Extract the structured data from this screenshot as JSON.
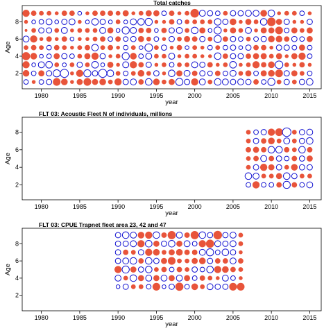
{
  "chart_data": [
    {
      "type": "bubble",
      "title": "Total catches",
      "xlabel": "year",
      "ylabel": "Age",
      "xlim": [
        1977.5,
        2016.5
      ],
      "ylim": [
        0.2,
        9.9
      ],
      "xticks": [
        1980,
        1985,
        1990,
        1995,
        2000,
        2005,
        2010,
        2015
      ],
      "yticks": [
        2,
        4,
        6,
        8
      ],
      "years": [
        1977,
        2015
      ],
      "ages": [
        1,
        9
      ],
      "colors": {
        "positive": "#e8543a",
        "negative": "#1010d0"
      },
      "residuals": [
        [
          -0.6,
          0.9,
          0.5,
          0.2,
          -0.3,
          -0.2,
          -0.4,
          -0.2,
          -0.3
        ],
        [
          -0.3,
          0.6,
          0.7,
          0.9,
          0.3,
          -0.5,
          0.1,
          0.2,
          0.7
        ],
        [
          0.2,
          -0.3,
          -0.2,
          0.6,
          0.4,
          0.7,
          0.3,
          -0.2,
          0.4
        ],
        [
          -0.3,
          0.5,
          -0.5,
          -0.2,
          0.3,
          0.2,
          -0.4,
          -0.3,
          0.3
        ],
        [
          -0.4,
          -0.4,
          -0.6,
          -0.3,
          -0.3,
          0.4,
          -0.4,
          -0.5,
          0.3
        ],
        [
          0.8,
          -0.7,
          0.3,
          0.5,
          0.4,
          0.2,
          0.3,
          -0.2,
          0.2
        ],
        [
          0.6,
          -0.9,
          -0.2,
          -0.4,
          0.3,
          0.4,
          -0.5,
          -0.4,
          0.4
        ],
        [
          0.2,
          0.2,
          0.3,
          -0.3,
          0.2,
          -0.2,
          0.2,
          -0.5,
          0.4
        ],
        [
          0.5,
          0.7,
          -0.4,
          0.3,
          0.3,
          0.2,
          0.3,
          0.2,
          -0.2
        ],
        [
          0.8,
          -0.7,
          0.3,
          0.5,
          0.4,
          0.2,
          0.3,
          -0.2,
          0.2
        ],
        [
          0.5,
          -0.4,
          -0.6,
          0.7,
          -0.6,
          0.3,
          0.3,
          -0.6,
          0.4
        ],
        [
          0.6,
          -0.9,
          -0.2,
          -0.4,
          0.3,
          0.4,
          -0.5,
          -0.4,
          0.4
        ],
        [
          0.3,
          -0.6,
          0.5,
          0.2,
          0.4,
          -0.3,
          0.5,
          -0.2,
          0.4
        ],
        [
          0.7,
          0.3,
          0.2,
          0.3,
          0.2,
          0.4,
          -0.2,
          0.3,
          0.3
        ],
        [
          -0.4,
          -0.3,
          -0.5,
          -0.7,
          -0.3,
          -0.3,
          -0.7,
          -0.2,
          0.5
        ],
        [
          -0.5,
          0.3,
          0.7,
          0.6,
          0.3,
          -0.4,
          -0.5,
          -0.5,
          0.2
        ],
        [
          0.4,
          0.6,
          0.4,
          -0.3,
          -0.2,
          0.5,
          0.4,
          -0.6,
          0.3
        ],
        [
          -0.6,
          0.3,
          -0.4,
          -0.5,
          -0.8,
          0.3,
          0.4,
          -0.7,
          0.5
        ],
        [
          0.6,
          -0.4,
          0.2,
          0.3,
          0.3,
          -0.3,
          -0.2,
          0.2,
          0.5
        ],
        [
          0.3,
          0.2,
          0.3,
          0.3,
          -0.4,
          0.2,
          0.4,
          0.2,
          -0.3
        ],
        [
          0.5,
          -0.6,
          -0.3,
          -0.5,
          0.2,
          -0.4,
          -0.4,
          0.4,
          0.4
        ],
        [
          -0.7,
          0.5,
          0.3,
          0.2,
          0.4,
          0.3,
          -0.5,
          -0.3,
          0.2
        ],
        [
          -0.4,
          -0.5,
          0.3,
          0.3,
          -0.2,
          0.5,
          0.3,
          0.3,
          0.3
        ],
        [
          0.7,
          0.4,
          -0.5,
          0.3,
          0.3,
          0.4,
          -0.6,
          0.3,
          1.0
        ],
        [
          -0.5,
          -0.4,
          -0.4,
          0.2,
          0.2,
          -0.4,
          0.5,
          0.3,
          -0.5
        ],
        [
          0.3,
          -0.3,
          0.4,
          0.2,
          -0.3,
          0.3,
          -0.2,
          0.3,
          -0.4
        ],
        [
          -0.6,
          0.4,
          0.2,
          -0.6,
          0.3,
          -0.7,
          -0.7,
          -0.6,
          -0.3
        ],
        [
          -0.5,
          -0.3,
          0.3,
          0.4,
          -0.3,
          0.4,
          0.2,
          -0.4,
          0.3
        ],
        [
          -0.4,
          -0.5,
          -0.6,
          -0.4,
          -0.4,
          -0.4,
          0.5,
          0.6,
          -0.4
        ],
        [
          -0.5,
          0.3,
          0.2,
          -0.4,
          -0.2,
          -0.3,
          0.3,
          0.2,
          -0.4
        ],
        [
          -0.4,
          0.5,
          0.3,
          0.4,
          -0.4,
          0.3,
          -0.5,
          0.5,
          -0.5
        ],
        [
          0.4,
          -0.3,
          0.7,
          0.5,
          0.4,
          -0.3,
          0.2,
          0.3,
          -0.5
        ],
        [
          -0.3,
          0.5,
          0.4,
          0.5,
          0.4,
          -0.4,
          0.5,
          -0.6,
          0.6
        ],
        [
          -0.7,
          0.6,
          0.6,
          0.3,
          0.2,
          0.6,
          0.5,
          1.0,
          -0.6
        ],
        [
          0.3,
          0.8,
          -0.8,
          0.5,
          -0.4,
          0.6,
          0.8,
          0.5,
          0.2
        ],
        [
          -0.4,
          -0.4,
          0.3,
          0.2,
          -0.4,
          0.4,
          -0.3,
          -0.4,
          0.3
        ],
        [
          0.3,
          0.5,
          0.2,
          0.5,
          -0.3,
          -0.4,
          0.5,
          0.2,
          0.3
        ],
        [
          -0.4,
          0.3,
          0.4,
          0.7,
          0.5,
          -0.3,
          0.3,
          0.2,
          -0.3
        ],
        [
          -0.6,
          -0.3,
          0.2,
          -0.3,
          -0.3,
          0.5,
          0.5,
          -0.4,
          0.2
        ]
      ]
    },
    {
      "type": "bubble",
      "title": "FLT 03: Acoustic Fleet   N of individuals, millions",
      "xlabel": "year",
      "ylabel": "Age",
      "xlim": [
        1977.5,
        2016.5
      ],
      "ylim": [
        0.3,
        9.7
      ],
      "xticks": [
        1980,
        1985,
        1990,
        1995,
        2000,
        2005,
        2010,
        2015
      ],
      "yticks": [
        2,
        4,
        6,
        8
      ],
      "years": [
        2007,
        2015
      ],
      "ages": [
        2,
        8
      ],
      "colors": {
        "positive": "#e8543a",
        "negative": "#1010d0"
      },
      "residuals": [
        [
          -0.3,
          -0.6,
          0.3,
          0.3,
          0.4,
          0.3,
          0.3
        ],
        [
          0.7,
          -0.5,
          -0.4,
          0.4,
          0.5,
          -0.4,
          -0.3
        ],
        [
          -0.3,
          0.3,
          0.7,
          -0.5,
          0.4,
          0.4,
          -0.4
        ],
        [
          -0.3,
          0.3,
          0.5,
          0.4,
          -0.6,
          0.6,
          0.7
        ],
        [
          0.4,
          0.5,
          -0.4,
          -0.4,
          -0.6,
          0.3,
          0.8
        ],
        [
          -0.7,
          -0.6,
          0.3,
          -0.3,
          0.4,
          -0.5,
          -1.0
        ],
        [
          0.4,
          -0.4,
          0.6,
          0.4,
          0.3,
          0.3,
          0.3
        ],
        [
          -0.3,
          0.3,
          -0.4,
          -0.4,
          -0.6,
          -0.4,
          -0.4
        ],
        [
          -0.5,
          0.3,
          -0.4,
          0.5,
          0.4,
          -0.6,
          -0.5
        ]
      ]
    },
    {
      "type": "bubble",
      "title": "FLT 03: CPUE Trapnet fleet area 23, 42 and 47",
      "xlabel": "year",
      "ylabel": "Age",
      "xlim": [
        1977.5,
        2016.5
      ],
      "ylim": [
        0.2,
        9.8
      ],
      "xticks": [
        1980,
        1985,
        1990,
        1995,
        2000,
        2005,
        2010,
        2015
      ],
      "yticks": [
        2,
        4,
        6,
        8
      ],
      "years": [
        1990,
        2006
      ],
      "ages": [
        3,
        9
      ],
      "colors": {
        "positive": "#e8543a",
        "negative": "#1010d0"
      },
      "residuals": [
        [
          -0.2,
          -0.5,
          0.7,
          -0.4,
          -0.4,
          -0.4,
          -0.4
        ],
        [
          -0.4,
          0.3,
          -0.7,
          -0.5,
          0.4,
          -0.4,
          -0.6
        ],
        [
          0.3,
          -0.6,
          0.5,
          -0.6,
          0.3,
          -0.5,
          -0.5
        ],
        [
          0.3,
          0.5,
          -0.4,
          0.4,
          -0.4,
          0.7,
          0.6
        ],
        [
          -0.3,
          -0.5,
          -0.6,
          -0.6,
          0.7,
          -0.6,
          0.7
        ],
        [
          0.8,
          0.5,
          0.3,
          -0.4,
          0.6,
          0.5,
          -0.6
        ],
        [
          -0.2,
          -0.5,
          0.4,
          0.5,
          0.3,
          -0.4,
          0.4
        ],
        [
          -0.4,
          0.5,
          -0.3,
          0.8,
          0.5,
          -0.6,
          0.9
        ],
        [
          0.9,
          -0.5,
          0.4,
          0.3,
          0.6,
          0.5,
          -0.5
        ],
        [
          -0.3,
          0.5,
          0.3,
          0.3,
          0.4,
          -0.5,
          0.4
        ],
        [
          0.6,
          -0.3,
          -0.4,
          0.5,
          0.4,
          -0.3,
          0.9
        ],
        [
          0.3,
          0.4,
          -0.3,
          0.6,
          -0.5,
          0.7,
          -0.6
        ],
        [
          -0.5,
          0.3,
          -0.6,
          -0.4,
          -0.7,
          0.9,
          -0.4
        ],
        [
          -0.4,
          0.2,
          0.7,
          0.4,
          -0.3,
          -0.5,
          1.0
        ],
        [
          -0.4,
          -0.5,
          0.6,
          0.4,
          -0.6,
          -0.4,
          -0.4
        ],
        [
          0.8,
          -0.3,
          0.4,
          -0.5,
          -0.4,
          -0.5,
          -0.5
        ],
        [
          0.8,
          0.2,
          0.3,
          0.4,
          0.2,
          0.3,
          0.3
        ]
      ]
    }
  ]
}
